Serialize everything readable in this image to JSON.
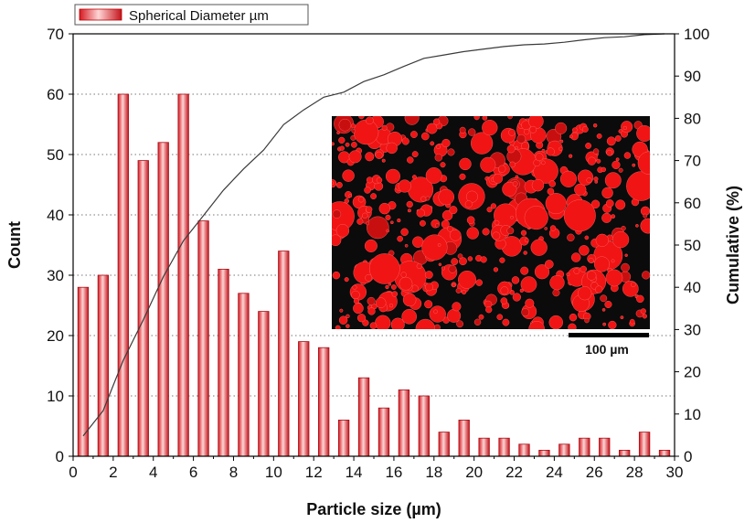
{
  "chart_data": {
    "type": "bar",
    "title": "",
    "xlabel": "Particle size (µm)",
    "ylabel": "Count",
    "y2label": "Cumulative (%)",
    "xlim": [
      0,
      30
    ],
    "ylim": [
      0,
      70
    ],
    "y2lim": [
      0,
      100
    ],
    "xticks": [
      0,
      2,
      4,
      6,
      8,
      10,
      12,
      14,
      16,
      18,
      20,
      22,
      24,
      26,
      28,
      30
    ],
    "yticks": [
      0,
      10,
      20,
      30,
      40,
      50,
      60,
      70
    ],
    "y2ticks": [
      0,
      10,
      20,
      30,
      40,
      50,
      60,
      70,
      80,
      90,
      100
    ],
    "grid": "horizontal dotted",
    "legend": {
      "position": "top-left",
      "entries": [
        "Spherical Diameter µm"
      ]
    },
    "series": [
      {
        "name": "Spherical Diameter µm",
        "kind": "bar",
        "color": "#e8212b",
        "x": [
          0.5,
          1.5,
          2.5,
          3.5,
          4.5,
          5.5,
          6.5,
          7.5,
          8.5,
          9.5,
          10.5,
          11.5,
          12.5,
          13.5,
          14.5,
          15.5,
          16.5,
          17.5,
          18.5,
          19.5,
          20.5,
          21.5,
          22.5,
          23.5,
          24.5,
          25.5,
          26.5,
          27.5,
          28.5,
          29.5
        ],
        "values": [
          28,
          30,
          60,
          49,
          52,
          60,
          39,
          31,
          27,
          24,
          34,
          19,
          18,
          6,
          13,
          8,
          11,
          10,
          4,
          6,
          3,
          3,
          2,
          1,
          2,
          3,
          3,
          1,
          4,
          1
        ]
      },
      {
        "kind": "line",
        "axis": "right",
        "color": "#333333",
        "x": [
          0.5,
          1.5,
          2.5,
          3.5,
          4.5,
          5.5,
          6.5,
          7.5,
          8.5,
          9.5,
          10.5,
          11.5,
          12.5,
          13.5,
          14.5,
          15.5,
          16.5,
          17.5,
          18.5,
          19.5,
          20.5,
          21.5,
          22.5,
          23.5,
          24.5,
          25.5,
          26.5,
          27.5,
          28.5,
          29.5
        ],
        "values": [
          4.8,
          10.8,
          22.7,
          32.3,
          42.5,
          51.0,
          57.0,
          63.0,
          68.0,
          72.5,
          78.5,
          82.0,
          85.0,
          86.2,
          88.7,
          90.3,
          92.3,
          94.2,
          95.0,
          95.8,
          96.4,
          97.0,
          97.4,
          97.6,
          98.0,
          98.6,
          99.1,
          99.3,
          99.8,
          100.0
        ]
      }
    ],
    "inset": {
      "description_label": "micrograph",
      "scale_bar_label": "100 µm"
    }
  }
}
